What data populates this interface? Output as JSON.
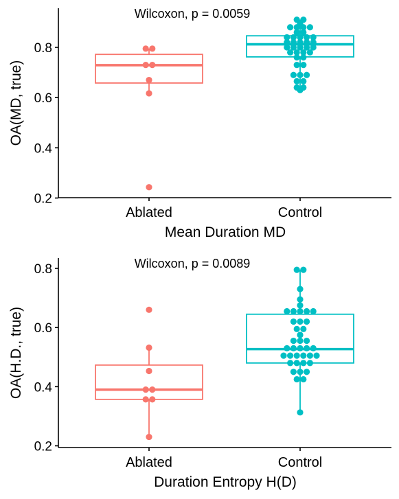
{
  "colors": {
    "ablated": "#F8766D",
    "control": "#00BFC4"
  },
  "chart_data": [
    {
      "type": "box",
      "xlabel": "Mean Duration MD",
      "ylabel": "OA(MD, true)",
      "annotation": "Wilcoxon, p = 0.0059",
      "ylim": [
        0.2,
        0.95
      ],
      "yticks": [
        0.2,
        0.4,
        0.6,
        0.8
      ],
      "grid": false,
      "categories": [
        "Ablated",
        "Control"
      ],
      "boxes": [
        {
          "category": "Ablated",
          "min": 0.617,
          "q1": 0.658,
          "median": 0.729,
          "q3": 0.772,
          "max": 0.795
        },
        {
          "category": "Control",
          "min": 0.63,
          "q1": 0.762,
          "median": 0.812,
          "q3": 0.846,
          "max": 0.91
        }
      ],
      "points": [
        {
          "category": "Ablated",
          "values": [
            0.795,
            0.795,
            0.73,
            0.73,
            0.67,
            0.617,
            0.243
          ]
        },
        {
          "category": "Control",
          "values": [
            0.91,
            0.91,
            0.895,
            0.88,
            0.88,
            0.88,
            0.88,
            0.86,
            0.86,
            0.84,
            0.84,
            0.84,
            0.84,
            0.84,
            0.82,
            0.82,
            0.82,
            0.82,
            0.82,
            0.8,
            0.8,
            0.8,
            0.8,
            0.8,
            0.78,
            0.78,
            0.78,
            0.78,
            0.76,
            0.76,
            0.73,
            0.73,
            0.69,
            0.69,
            0.69,
            0.665,
            0.665,
            0.64,
            0.64,
            0.63
          ]
        }
      ]
    },
    {
      "type": "box",
      "xlabel": "Duration Entropy H(D)",
      "ylabel": "OA(H.D., true)",
      "annotation": "Wilcoxon, p = 0.0089",
      "ylim": [
        0.2,
        0.83
      ],
      "yticks": [
        0.2,
        0.4,
        0.6,
        0.8
      ],
      "grid": false,
      "categories": [
        "Ablated",
        "Control"
      ],
      "boxes": [
        {
          "category": "Ablated",
          "min": 0.23,
          "q1": 0.357,
          "median": 0.39,
          "q3": 0.473,
          "max": 0.532
        },
        {
          "category": "Control",
          "min": 0.313,
          "q1": 0.48,
          "median": 0.527,
          "q3": 0.645,
          "max": 0.795
        }
      ],
      "points": [
        {
          "category": "Ablated",
          "values": [
            0.66,
            0.532,
            0.453,
            0.39,
            0.39,
            0.357,
            0.357,
            0.23
          ]
        },
        {
          "category": "Control",
          "values": [
            0.795,
            0.795,
            0.73,
            0.695,
            0.675,
            0.655,
            0.655,
            0.655,
            0.655,
            0.655,
            0.62,
            0.62,
            0.62,
            0.595,
            0.595,
            0.575,
            0.555,
            0.555,
            0.555,
            0.53,
            0.53,
            0.53,
            0.53,
            0.53,
            0.505,
            0.505,
            0.505,
            0.505,
            0.505,
            0.505,
            0.48,
            0.48,
            0.48,
            0.48,
            0.45,
            0.45,
            0.45,
            0.425,
            0.425,
            0.313
          ]
        }
      ]
    }
  ]
}
